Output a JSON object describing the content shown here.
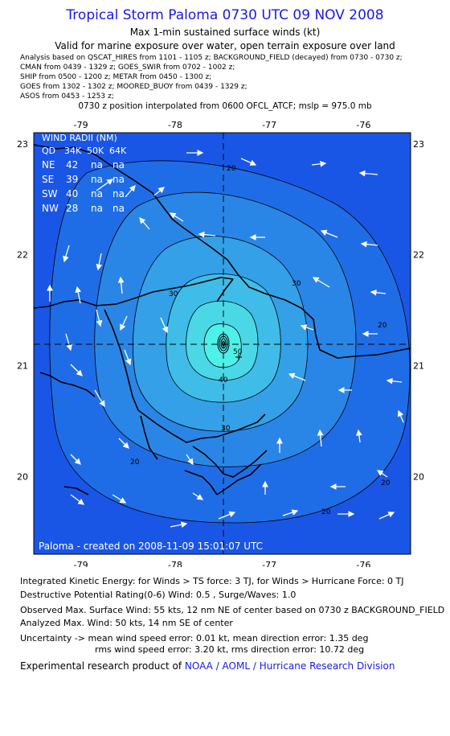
{
  "header": {
    "title": "Tropical Storm Paloma 0730 UTC 09 NOV 2008",
    "subtitle": "Max 1-min sustained surface winds (kt)",
    "subtitle2": "Valid for marine exposure over water, open terrain exposure over land",
    "analysis_lines": [
      "Analysis based on  QSCAT_HIRES from 1101 - 1105 z;  BACKGROUND_FIELD (decayed) from 0730 - 0730 z;",
      "CMAN from 0439 - 1329 z;  GOES_SWIR from 0702 - 1002 z;",
      "SHIP from 0500 - 1200 z;  METAR from 0450 - 1300 z;",
      "GOES from 1302 - 1302 z;  MOORED_BUOY from 0439 - 1329 z;",
      "ASOS from 0453 - 1253 z;"
    ],
    "position_line": "0730 z position interpolated from 0600 OFCL_ATCF; mslp = 975.0 mb"
  },
  "wind_radii": {
    "title": "WIND RADII (NM)",
    "header": [
      "QD",
      "34K",
      "50K",
      "64K"
    ],
    "rows": [
      [
        "NE",
        "42",
        "na",
        "na"
      ],
      [
        "SE",
        "39",
        "na",
        "na"
      ],
      [
        "SW",
        "40",
        "na",
        "na"
      ],
      [
        "NW",
        "28",
        "na",
        "na"
      ]
    ]
  },
  "credit": "Paloma - created on 2008-11-09 15:01:07 UTC",
  "footer": {
    "ike": "Integrated Kinetic Energy:  for Winds > TS force: 3 TJ,  for Winds > Hurricane Force: 0 TJ",
    "dpr": "Destructive Potential Rating(0-6)   Wind: 0.5 , Surge/Waves: 1.0",
    "observed": "Observed Max. Surface Wind: 55 kts, 12 nm NE of center based on 0730 z BACKGROUND_FIELD",
    "analyzed": "Analyzed Max. Wind: 50 kts, 14 nm SE of center",
    "uncertainty1": "Uncertainty -> mean wind speed error: 0.01 kt,   mean direction error: 1.35 deg",
    "uncertainty2": "rms wind speed error: 3.20 kt,   rms direction error: 10.72 deg",
    "research_prefix": "Experimental research product of ",
    "research_org": "NOAA / AOML / Hurricane Research Division"
  },
  "chart_data": {
    "type": "heatmap",
    "title": "Max 1-min sustained surface winds (kt)",
    "x_ticks": [
      "-79",
      "-78",
      "-77",
      "-76"
    ],
    "y_ticks": [
      "23",
      "22",
      "21",
      "20"
    ],
    "xlim": [
      -79.5,
      -75.5
    ],
    "ylim": [
      19.3,
      23.1
    ],
    "center": {
      "lon": -77.45,
      "lat": 21.18
    },
    "contour_labels": [
      "20",
      "30",
      "40",
      "50",
      "20",
      "30",
      "30",
      "20",
      "20",
      "20"
    ],
    "contour_levels": [
      20,
      25,
      30,
      35,
      40,
      45,
      50
    ],
    "colors": {
      "background": "#1a56e6",
      "level_20": "#1f6de6",
      "level_25": "#2a86e6",
      "level_30": "#34a0e8",
      "level_35": "#3fbde8",
      "level_40": "#4ad8e6",
      "level_45": "#4ff0e8",
      "coast": "#000000",
      "arrows": "#ffffff"
    }
  }
}
